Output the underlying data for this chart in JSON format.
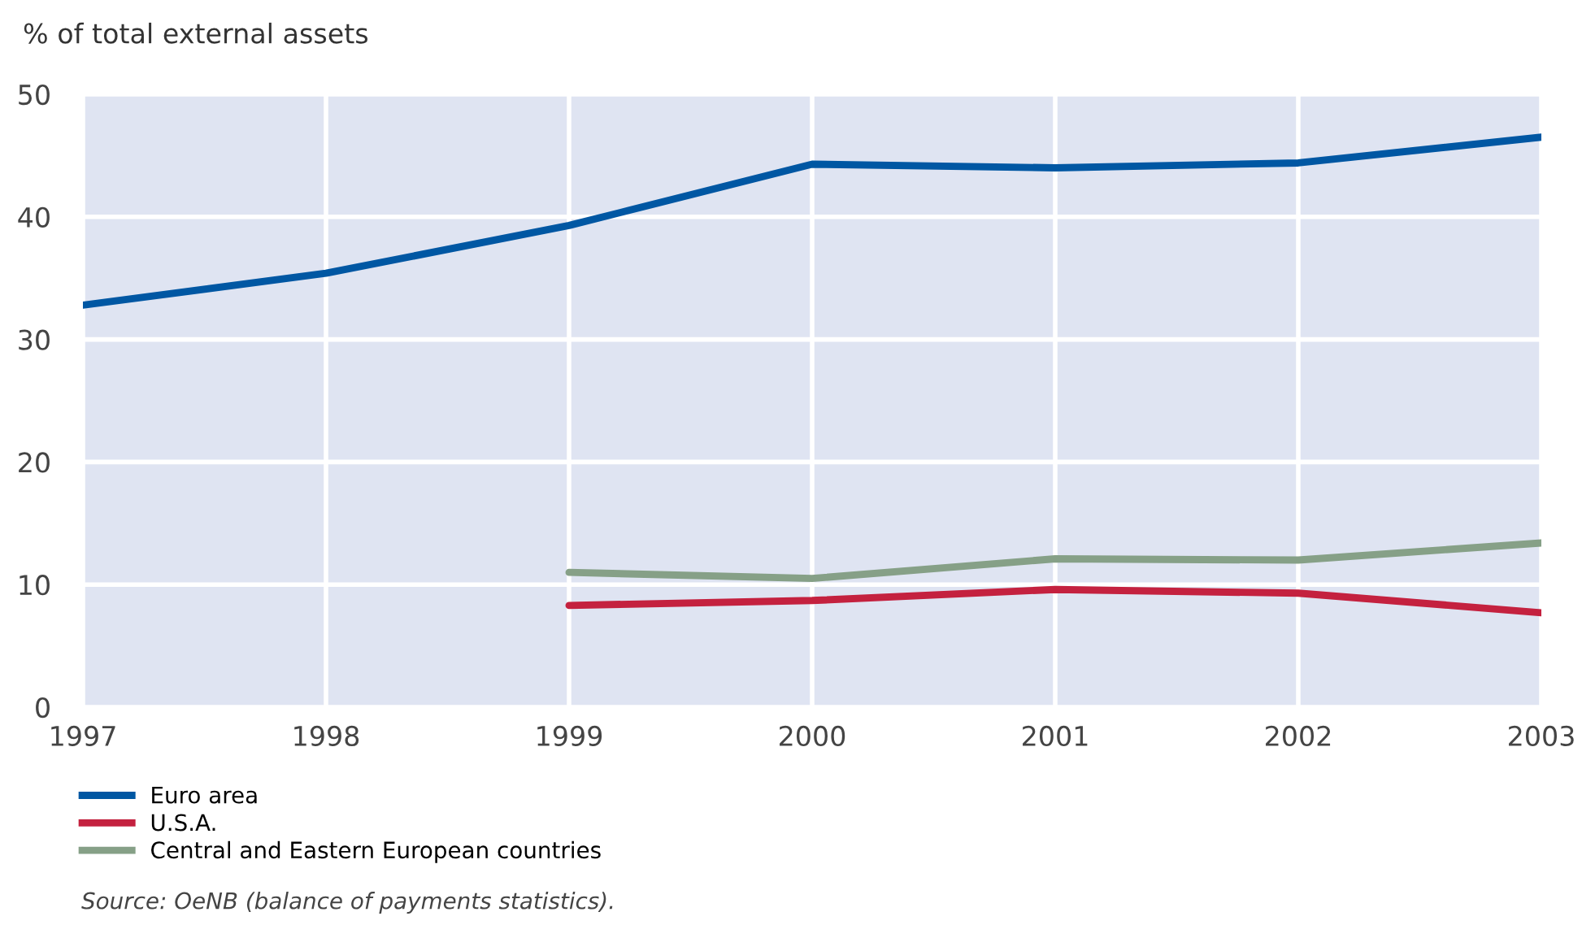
{
  "chart_data": {
    "type": "line",
    "ylabel": "% of total external assets",
    "categories": [
      "1997",
      "1998",
      "1999",
      "2000",
      "2001",
      "2002",
      "2003"
    ],
    "series": [
      {
        "name": "Euro area",
        "color": "#0057a3",
        "values": [
          32.8,
          35.4,
          39.3,
          44.3,
          44.0,
          44.4,
          46.5
        ]
      },
      {
        "name": "U.S.A.",
        "color": "#c4213f",
        "values": [
          null,
          null,
          8.3,
          8.7,
          9.6,
          9.3,
          7.7
        ]
      },
      {
        "name": "Central and Eastern European countries",
        "color": "#86a087",
        "values": [
          null,
          null,
          11.0,
          10.5,
          12.1,
          12.0,
          13.4
        ]
      }
    ],
    "ylim": [
      0,
      50
    ],
    "yticks": [
      0,
      10,
      20,
      30,
      40,
      50
    ],
    "grid": true,
    "legend": "bottom left",
    "line_style": "solid",
    "marker": "none",
    "annotations": [
      "Source: OeNB (balance of payments statistics)."
    ]
  }
}
